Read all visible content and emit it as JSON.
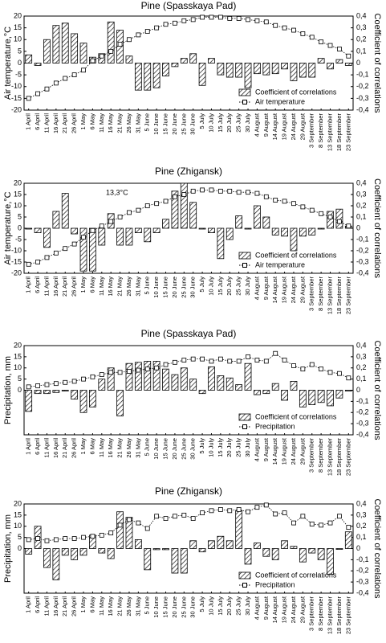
{
  "chart_data": [
    {
      "type": "bar_line",
      "title": "Pine (Spasskaya Pad)",
      "y_label": "Air temperature,°C",
      "y2_label": "Coefficient of correlations",
      "categories": [
        "1 April",
        "6 April",
        "11 April",
        "16 April",
        "21 April",
        "26 April",
        "1 May",
        "6 May",
        "11 May",
        "16 May",
        "21 May",
        "26 May",
        "31 May",
        "5 June",
        "10 June",
        "15 June",
        "20 June",
        "25 June",
        "30 June",
        "5 July",
        "10 July",
        "15 July",
        "20 July",
        "25 July",
        "30 July",
        "4 August",
        "9 August",
        "14 August",
        "19 August",
        "24 August",
        "29 August",
        "3 September",
        "8 September",
        "13 September",
        "18 September",
        "23 September"
      ],
      "series": [
        {
          "name": "Coefficient of correlations",
          "kind": "bar",
          "axis": "y2",
          "color": "#000000",
          "values": [
            0.07,
            -0.02,
            0.2,
            0.32,
            0.34,
            0.25,
            0.17,
            0.05,
            0.08,
            0.35,
            0.28,
            0.06,
            -0.23,
            -0.23,
            -0.21,
            -0.11,
            -0.03,
            0.04,
            0.08,
            -0.19,
            0.04,
            -0.1,
            -0.12,
            -0.12,
            -0.21,
            -0.09,
            -0.1,
            -0.09,
            -0.05,
            -0.15,
            -0.12,
            -0.12,
            0.04,
            -0.05,
            0.03,
            -0.02
          ]
        },
        {
          "name": "Air temperature",
          "kind": "line",
          "color": "#000000",
          "values": [
            -15,
            -13,
            -11,
            -8.5,
            -6.5,
            -5,
            -3,
            1,
            3,
            5,
            8,
            10,
            12,
            13.5,
            15,
            16.5,
            17,
            18,
            18.5,
            19.5,
            19.5,
            19.5,
            19,
            19,
            18.5,
            18,
            17.5,
            16,
            15,
            14,
            12.5,
            11,
            9,
            7.5,
            6,
            3
          ]
        }
      ],
      "ylim": [
        -20,
        20
      ],
      "yticks": [
        -20,
        -15,
        -10,
        -5,
        0,
        5,
        10,
        15,
        20
      ],
      "y2lim": [
        -0.4,
        0.4
      ],
      "y2ticks": [
        {
          "value": -0.4,
          "label": "-0,4"
        },
        {
          "value": -0.3,
          "label": "-0,3"
        },
        {
          "value": -0.2,
          "label": "-0,2"
        },
        {
          "value": -0.1,
          "label": "-0,1"
        },
        0,
        {
          "value": 0.1,
          "label": "0,1"
        },
        {
          "value": 0.2,
          "label": "0,2"
        },
        {
          "value": 0.3,
          "label": "0,3"
        },
        {
          "value": 0.4,
          "label": "0,4"
        }
      ]
    },
    {
      "type": "bar_line",
      "title": "Pine (Zhigansk)",
      "y_label": "Air temperature,°C",
      "y2_label": "Coefficient of correlations",
      "annotation": "13,3°C",
      "categories": [
        "1 April",
        "6 April",
        "11 April",
        "16 April",
        "21 April",
        "26 April",
        "1 May",
        "6 May",
        "11 May",
        "16 May",
        "21 May",
        "26 May",
        "31 May",
        "5 June",
        "10 June",
        "15 June",
        "20 June",
        "25 June",
        "30 June",
        "5 July",
        "10 July",
        "15 July",
        "20 July",
        "25 July",
        "30 July",
        "4 August",
        "9 August",
        "14 August",
        "19 August",
        "24 August",
        "29 August",
        "3 September",
        "8 September",
        "13 September",
        "18 September",
        "23 September"
      ],
      "series": [
        {
          "name": "Coefficient of correlations",
          "kind": "bar",
          "axis": "y2",
          "color": "#000000",
          "values": [
            0,
            -0.04,
            -0.17,
            0.15,
            0.31,
            -0.05,
            -0.38,
            -0.38,
            -0.15,
            0.13,
            -0.15,
            -0.15,
            -0.04,
            -0.12,
            -0.04,
            0.08,
            0.33,
            0.4,
            0.23,
            0,
            -0.04,
            -0.27,
            -0.1,
            0.11,
            0,
            0.2,
            0.1,
            -0.06,
            -0.07,
            -0.2,
            -0.07,
            -0.06,
            0,
            0.15,
            0.17,
            0.02
          ]
        },
        {
          "name": "Air temperature",
          "kind": "line",
          "color": "#000000",
          "values": [
            -16,
            -15,
            -13,
            -11,
            -9,
            -7,
            -4,
            -1,
            1,
            3,
            5,
            7,
            8,
            10,
            11,
            12,
            14,
            15,
            16.5,
            17,
            17,
            16.5,
            16.5,
            16,
            16,
            15.5,
            14,
            12.5,
            12,
            11,
            9.5,
            8,
            6.5,
            5,
            3,
            1
          ]
        }
      ],
      "ylim": [
        -20,
        20
      ],
      "yticks": [
        -20,
        -15,
        -10,
        -5,
        0,
        5,
        10,
        15,
        20
      ],
      "y2lim": [
        -0.4,
        0.4
      ],
      "y2ticks": [
        {
          "value": -0.4,
          "label": "-0,4"
        },
        {
          "value": -0.3,
          "label": "-0,3"
        },
        {
          "value": -0.2,
          "label": "-0,2"
        },
        {
          "value": -0.1,
          "label": "-0,1"
        },
        0,
        {
          "value": 0.1,
          "label": "0,1"
        },
        {
          "value": 0.2,
          "label": "0,2"
        },
        {
          "value": 0.3,
          "label": "0,3"
        },
        {
          "value": 0.4,
          "label": "0,4"
        }
      ]
    },
    {
      "type": "bar_line",
      "title": "Pine (Spasskaya Pad)",
      "y_label": "Precipitation, mm",
      "y2_label": "Coefficient of correlations",
      "categories": [
        "1 April",
        "6 April",
        "11 April",
        "16 April",
        "21 April",
        "26 April",
        "1 May",
        "6 May",
        "11 May",
        "16 May",
        "21 May",
        "26 May",
        "31 May",
        "5 June",
        "10 June",
        "15 June",
        "20 June",
        "25 June",
        "30 June",
        "5 July",
        "10 July",
        "15 July",
        "20 July",
        "25 July",
        "30 July",
        "4 August",
        "9 August",
        "14 August",
        "19 August",
        "24 August",
        "29 August",
        "3 September",
        "8 September",
        "13 September",
        "18 September",
        "23 September"
      ],
      "series": [
        {
          "name": "Coefficient of correlations",
          "kind": "bar",
          "axis": "y2",
          "color": "#000000",
          "values": [
            -0.19,
            -0.03,
            -0.03,
            -0.02,
            0,
            -0.08,
            -0.2,
            -0.15,
            0.1,
            0.2,
            -0.23,
            0.24,
            0.25,
            0.26,
            0.26,
            0.19,
            0.14,
            0.2,
            0.1,
            -0.03,
            0.21,
            0.13,
            0.11,
            0.05,
            0.24,
            -0.04,
            -0.03,
            0.06,
            -0.09,
            0.08,
            -0.15,
            -0.13,
            -0.11,
            -0.14,
            -0.07,
            0
          ]
        },
        {
          "name": "Precipitation",
          "kind": "line",
          "color": "#000000",
          "values": [
            1.5,
            2,
            2.5,
            3,
            3.5,
            4,
            5,
            6,
            7,
            8,
            8,
            8.5,
            9,
            9.5,
            10,
            11.5,
            12.5,
            13.5,
            14,
            14,
            13,
            14,
            13,
            13,
            15,
            13.5,
            13,
            16.5,
            13.5,
            11,
            9.5,
            11.5,
            9.5,
            8,
            7.5,
            5.5
          ]
        }
      ],
      "ylim": [
        -20,
        20
      ],
      "yticks": [
        0,
        5,
        10,
        15,
        20
      ],
      "y2lim": [
        -0.4,
        0.4
      ],
      "y2ticks": [
        {
          "value": -0.4,
          "label": "-0,4"
        },
        {
          "value": -0.3,
          "label": "-0,3"
        },
        {
          "value": -0.2,
          "label": "-0,2"
        },
        {
          "value": -0.1,
          "label": "-0,1"
        },
        0,
        {
          "value": 0.1,
          "label": "0,1"
        },
        {
          "value": 0.2,
          "label": "0,2"
        },
        {
          "value": 0.3,
          "label": "0,3"
        },
        {
          "value": 0.4,
          "label": "0,4"
        }
      ]
    },
    {
      "type": "bar_line",
      "title": "Pine (Zhigansk)",
      "y_label": "Precipitation, mm",
      "y2_label": "Coefficient of correlations",
      "categories": [
        "1 April",
        "6 April",
        "11 April",
        "16 April",
        "21 April",
        "26 April",
        "1 May",
        "6 May",
        "11 May",
        "16 May",
        "21 May",
        "26 May",
        "31 May",
        "5 June",
        "10 June",
        "15 June",
        "20 June",
        "25 June",
        "30 June",
        "5 July",
        "10 July",
        "15 July",
        "20 July",
        "25 July",
        "30 July",
        "4 August",
        "9 August",
        "14 August",
        "19 August",
        "24 August",
        "29 August",
        "3 September",
        "8 September",
        "13 September",
        "18 September",
        "23 September"
      ],
      "series": [
        {
          "name": "Coefficient of correlations",
          "kind": "bar",
          "axis": "y2",
          "color": "#000000",
          "values": [
            -0.05,
            0.2,
            -0.17,
            -0.28,
            -0.06,
            -0.1,
            -0.06,
            0.12,
            -0.04,
            -0.09,
            0.33,
            0.28,
            0.08,
            -0.19,
            -0.01,
            -0.01,
            -0.22,
            -0.22,
            0.07,
            -0.03,
            0.07,
            0.11,
            0.07,
            0.34,
            -0.14,
            0.05,
            -0.07,
            -0.1,
            0.07,
            0.02,
            -0.12,
            -0.04,
            -0.1,
            -0.23,
            0,
            0.15
          ]
        },
        {
          "name": "Precipitation",
          "kind": "line",
          "color": "#000000",
          "values": [
            4,
            4.5,
            3.5,
            4,
            4.5,
            4.5,
            5,
            5.5,
            6,
            7,
            10.5,
            13,
            11.5,
            9,
            14.5,
            13.5,
            14.5,
            15,
            13.5,
            16,
            17,
            17.5,
            17,
            17.5,
            16.5,
            18.5,
            19.5,
            15.5,
            16,
            11.5,
            14.5,
            11,
            10.5,
            11.5,
            14.5,
            9.5
          ]
        }
      ],
      "ylim": [
        -20,
        20
      ],
      "yticks": [
        0,
        5,
        10,
        15,
        20
      ],
      "y2lim": [
        -0.4,
        0.4
      ],
      "y2ticks": [
        {
          "value": -0.4,
          "label": "-0,4"
        },
        {
          "value": -0.3,
          "label": "-0,3"
        },
        {
          "value": -0.2,
          "label": "-0,2"
        },
        {
          "value": -0.1,
          "label": "-0,1"
        },
        0,
        {
          "value": 0.1,
          "label": "0,1"
        },
        {
          "value": 0.2,
          "label": "0,2"
        },
        {
          "value": 0.3,
          "label": "0,3"
        },
        {
          "value": 0.4,
          "label": "0,4"
        }
      ]
    }
  ]
}
